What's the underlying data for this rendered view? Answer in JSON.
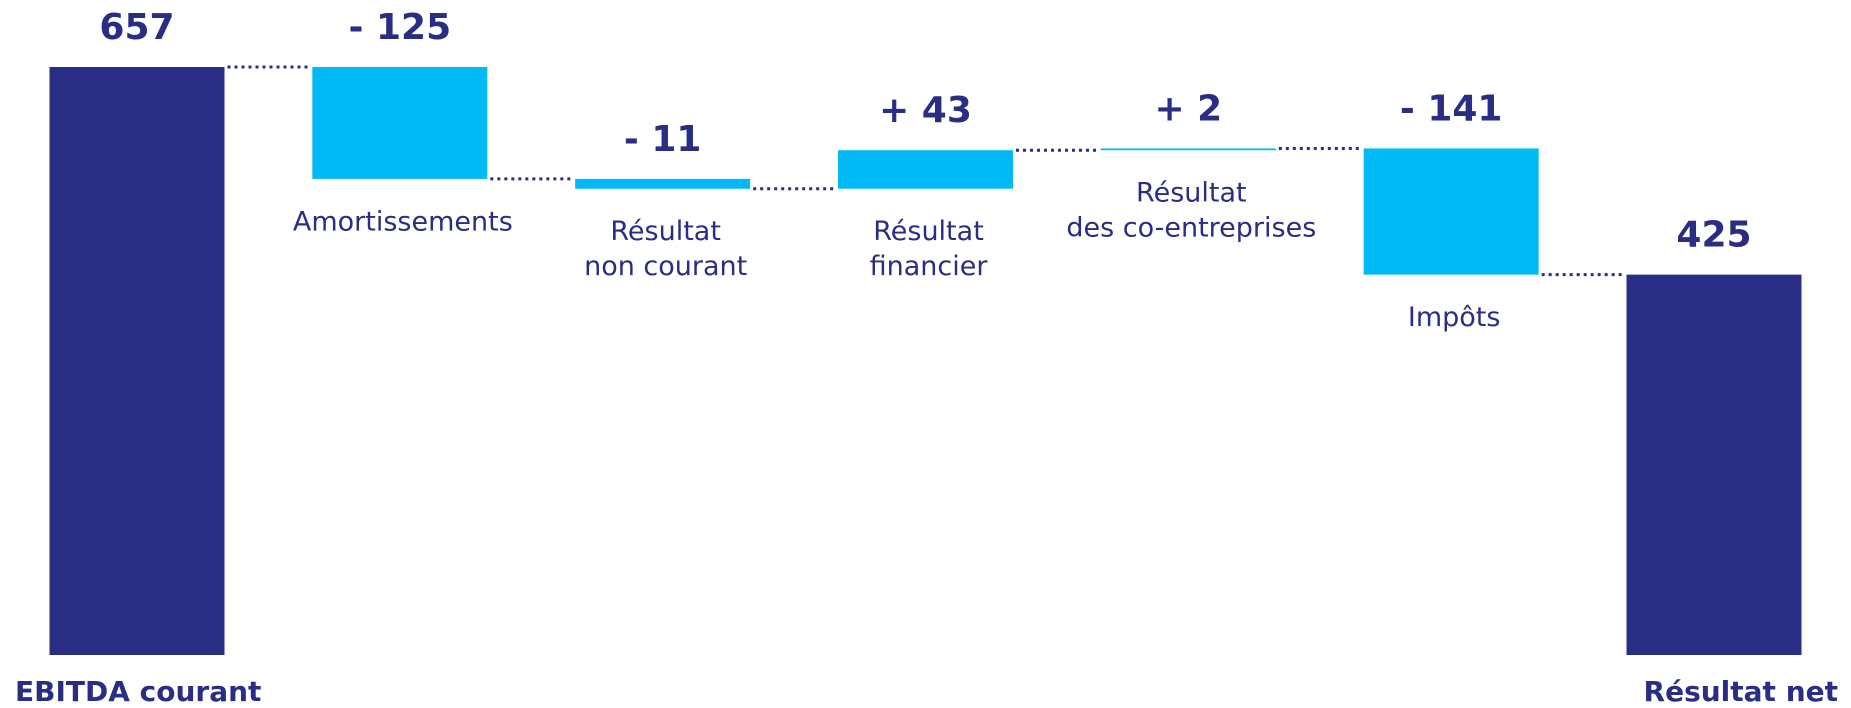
{
  "chart_data": {
    "type": "waterfall",
    "categories": [
      [
        "EBITDA courant"
      ],
      [
        "Amortissements"
      ],
      [
        "Résultat",
        "non courant"
      ],
      [
        "Résultat",
        "financier"
      ],
      [
        "Résultat",
        "des co-entreprises"
      ],
      [
        "Impôts"
      ],
      [
        "Résultat net"
      ]
    ],
    "values": [
      657,
      -125,
      -11,
      43,
      2,
      -141,
      425
    ],
    "value_labels": [
      "657",
      "- 125",
      "- 11",
      "+ 43",
      "+ 2",
      "- 141",
      "425"
    ],
    "colors": [
      "#2a2d84",
      "#00b9f5",
      "#00b9f5",
      "#00b9f5",
      "#00b9f5",
      "#00b9f5",
      "#2a2d84"
    ]
  }
}
